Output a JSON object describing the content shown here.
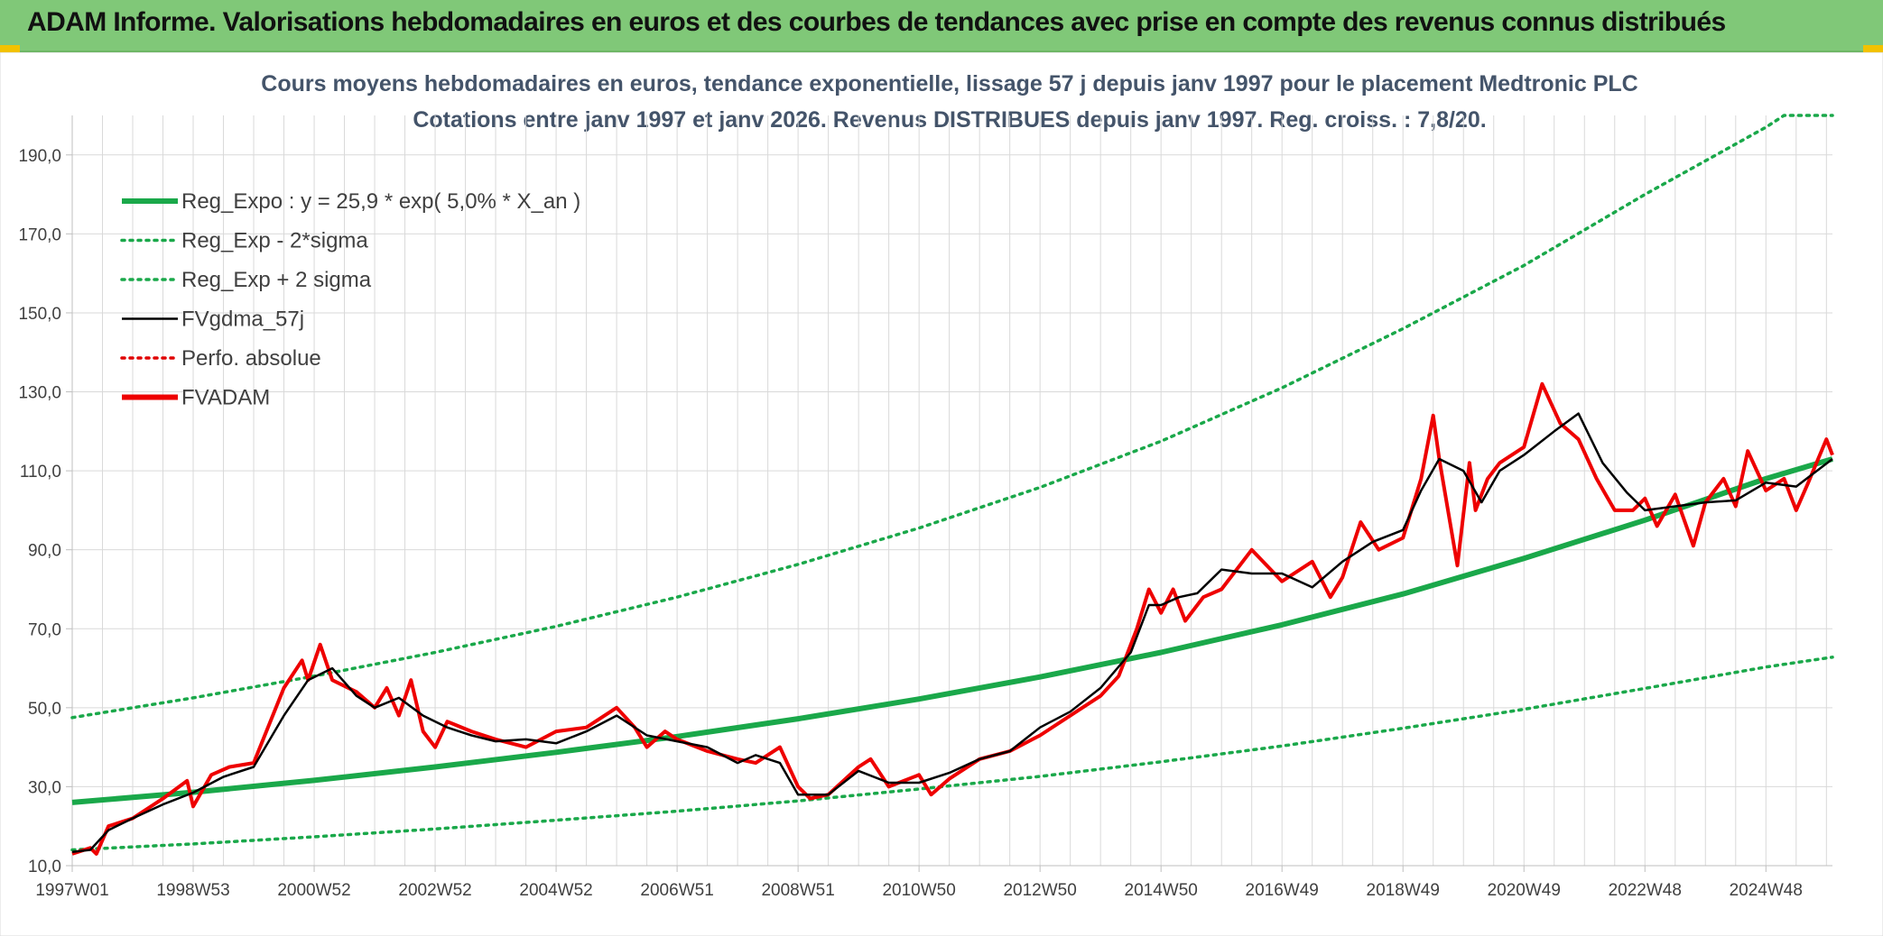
{
  "header": {
    "title": "ADAM Informe. Valorisations hebdomadaires en euros et des courbes de tendances avec prise en compte des revenus connus distribués",
    "background": "#80c878"
  },
  "chart_data": {
    "type": "line",
    "title": "Cours moyens hebdomadaires en euros, tendance exponentielle, lissage 57 j depuis janv 1997 pour le placement Medtronic PLC",
    "subtitle": "Cotations entre janv 1997 et janv 2026. Revenus DISTRIBUES depuis janv 1997. Reg. croiss. : 7,8/20.",
    "xlabel": "",
    "ylabel": "",
    "x_range": [
      1997.0,
      2026.1
    ],
    "ylim": [
      10,
      200
    ],
    "grid": true,
    "legend_position": "top-left",
    "x_tick_labels": [
      "1997W01",
      "1998W53",
      "2000W52",
      "2002W52",
      "2004W52",
      "2006W51",
      "2008W51",
      "2010W50",
      "2012W50",
      "2014W50",
      "2016W49",
      "2018W49",
      "2020W49",
      "2022W48",
      "2024W48"
    ],
    "x_tick_values": [
      1997.0,
      1999.0,
      2001.0,
      2003.0,
      2005.0,
      2007.0,
      2009.0,
      2011.0,
      2013.0,
      2015.0,
      2017.0,
      2019.0,
      2021.0,
      2023.0,
      2025.0
    ],
    "y_ticks": [
      10,
      30,
      50,
      70,
      90,
      110,
      130,
      150,
      170,
      190
    ],
    "y_tick_labels": [
      "10,0",
      "30,0",
      "50,0",
      "70,0",
      "90,0",
      "110,0",
      "130,0",
      "150,0",
      "170,0",
      "190,0"
    ],
    "series": [
      {
        "name": "Reg_Expo : y = 25,9 * exp( 5,0% *  X_an )",
        "color": "#1aa84a",
        "style": "thick",
        "x": [
          1997.0,
          1999.0,
          2001.0,
          2003.0,
          2005.0,
          2007.0,
          2009.0,
          2011.0,
          2013.0,
          2015.0,
          2017.0,
          2019.0,
          2021.0,
          2023.0,
          2025.0,
          2026.1
        ],
        "values": [
          26.0,
          28.6,
          31.6,
          35.0,
          38.7,
          42.7,
          47.2,
          52.2,
          57.8,
          64.0,
          71.0,
          78.8,
          87.8,
          97.5,
          108.0,
          113.0
        ]
      },
      {
        "name": "Reg_Exp - 2*sigma",
        "color": "#1aa84a",
        "style": "dotted",
        "x": [
          1997.0,
          1999.0,
          2001.0,
          2003.0,
          2005.0,
          2007.0,
          2009.0,
          2011.0,
          2013.0,
          2015.0,
          2017.0,
          2019.0,
          2021.0,
          2023.0,
          2025.0,
          2026.1
        ],
        "values": [
          14.0,
          15.5,
          17.3,
          19.3,
          21.5,
          23.8,
          26.4,
          29.4,
          32.6,
          36.3,
          40.3,
          44.8,
          49.6,
          54.9,
          60.3,
          62.8
        ]
      },
      {
        "name": "Reg_Exp + 2 sigma",
        "color": "#1aa84a",
        "style": "dotted",
        "x": [
          1997.0,
          1999.0,
          2001.0,
          2003.0,
          2005.0,
          2007.0,
          2009.0,
          2011.0,
          2013.0,
          2015.0,
          2017.0,
          2019.0,
          2021.0,
          2023.0,
          2025.0,
          2025.3,
          2026.1
        ],
        "values": [
          47.5,
          52.5,
          58.0,
          64.0,
          70.6,
          78.0,
          86.3,
          95.5,
          105.8,
          117.5,
          131.0,
          146.0,
          162.0,
          180.0,
          197.0,
          200.0,
          200.0
        ]
      },
      {
        "name": "FVgdma_57j",
        "color": "#000000",
        "style": "thin",
        "x": [
          1997.0,
          1997.3,
          1997.6,
          1998.0,
          1998.5,
          1999.0,
          1999.5,
          2000.0,
          2000.5,
          2000.9,
          2001.3,
          2001.7,
          2002.0,
          2002.4,
          2002.8,
          2003.2,
          2003.6,
          2004.0,
          2004.5,
          2005.0,
          2005.5,
          2006.0,
          2006.5,
          2007.0,
          2007.5,
          2008.0,
          2008.3,
          2008.7,
          2009.0,
          2009.5,
          2010.0,
          2010.5,
          2011.0,
          2011.5,
          2012.0,
          2012.5,
          2013.0,
          2013.5,
          2014.0,
          2014.5,
          2014.8,
          2015.0,
          2015.3,
          2015.6,
          2016.0,
          2016.5,
          2017.0,
          2017.5,
          2018.0,
          2018.5,
          2019.0,
          2019.3,
          2019.6,
          2020.0,
          2020.3,
          2020.6,
          2021.0,
          2021.5,
          2021.9,
          2022.3,
          2022.7,
          2023.0,
          2023.5,
          2024.0,
          2024.5,
          2025.0,
          2025.5,
          2026.1
        ],
        "values": [
          13.5,
          14.0,
          19.0,
          22.0,
          25.5,
          28.5,
          32.5,
          35.0,
          48.0,
          57.0,
          60.0,
          53.0,
          50.0,
          52.5,
          48.0,
          45.0,
          43.0,
          41.5,
          42.0,
          41.0,
          44.0,
          48.0,
          43.0,
          41.5,
          40.0,
          36.0,
          38.0,
          36.0,
          28.0,
          28.0,
          34.0,
          31.0,
          31.0,
          33.5,
          37.0,
          39.0,
          45.0,
          49.0,
          55.0,
          64.0,
          76.0,
          76.0,
          78.0,
          79.0,
          85.0,
          84.0,
          84.0,
          80.5,
          87.0,
          92.0,
          95.0,
          105.0,
          113.0,
          110.0,
          102.0,
          110.0,
          114.0,
          120.0,
          124.5,
          112.0,
          104.5,
          100.0,
          101.0,
          102.0,
          102.5,
          107.0,
          106.0,
          113.0
        ]
      },
      {
        "name": "Perfo. absolue",
        "color": "#e00000",
        "style": "dotted",
        "x": [],
        "values": []
      },
      {
        "name": "FVADAM",
        "color": "#ee0000",
        "style": "thick",
        "x": [
          1997.0,
          1997.3,
          1997.4,
          1997.6,
          1998.0,
          1998.5,
          1998.9,
          1999.0,
          1999.3,
          1999.6,
          2000.0,
          2000.5,
          2000.8,
          2000.9,
          2001.1,
          2001.3,
          2001.7,
          2002.0,
          2002.2,
          2002.4,
          2002.6,
          2002.8,
          2003.0,
          2003.2,
          2003.6,
          2004.0,
          2004.5,
          2005.0,
          2005.5,
          2006.0,
          2006.3,
          2006.5,
          2006.8,
          2007.0,
          2007.5,
          2008.0,
          2008.3,
          2008.7,
          2009.0,
          2009.2,
          2009.5,
          2010.0,
          2010.2,
          2010.5,
          2011.0,
          2011.2,
          2011.5,
          2012.0,
          2012.5,
          2013.0,
          2013.5,
          2014.0,
          2014.3,
          2014.6,
          2014.8,
          2015.0,
          2015.2,
          2015.4,
          2015.7,
          2016.0,
          2016.5,
          2017.0,
          2017.5,
          2017.8,
          2018.0,
          2018.3,
          2018.6,
          2019.0,
          2019.3,
          2019.5,
          2019.6,
          2019.9,
          2020.1,
          2020.2,
          2020.4,
          2020.6,
          2021.0,
          2021.3,
          2021.6,
          2021.9,
          2022.2,
          2022.5,
          2022.8,
          2023.0,
          2023.2,
          2023.5,
          2023.8,
          2024.0,
          2024.3,
          2024.5,
          2024.7,
          2025.0,
          2025.3,
          2025.5,
          2025.7,
          2026.0,
          2026.1
        ],
        "values": [
          13.0,
          14.5,
          13.0,
          20.0,
          22.0,
          27.0,
          31.5,
          25.0,
          33.0,
          35.0,
          36.0,
          55.0,
          62.0,
          57.0,
          66.0,
          57.0,
          54.0,
          50.0,
          55.0,
          48.0,
          57.0,
          44.0,
          40.0,
          46.5,
          44.0,
          42.0,
          40.0,
          44.0,
          45.0,
          50.0,
          45.0,
          40.0,
          44.0,
          42.0,
          39.0,
          37.0,
          36.0,
          40.0,
          30.0,
          27.0,
          28.0,
          35.0,
          37.0,
          30.0,
          33.0,
          28.0,
          32.0,
          37.0,
          39.0,
          43.0,
          48.0,
          53.0,
          58.0,
          70.0,
          80.0,
          74.0,
          80.0,
          72.0,
          78.0,
          80.0,
          90.0,
          82.0,
          87.0,
          78.0,
          83.0,
          97.0,
          90.0,
          93.0,
          108.0,
          124.0,
          113.0,
          86.0,
          112.0,
          100.0,
          108.0,
          112.0,
          116.0,
          132.0,
          122.0,
          118.0,
          108.0,
          100.0,
          100.0,
          103.0,
          96.0,
          104.0,
          91.0,
          102.0,
          108.0,
          101.0,
          115.0,
          105.0,
          108.0,
          100.0,
          107.0,
          118.0,
          114.0
        ]
      }
    ],
    "legend_entries": [
      {
        "label": "Reg_Expo : y = 25,9 * exp( 5,0% *  X_an )"
      },
      {
        "label": "Reg_Exp - 2*sigma"
      },
      {
        "label": "Reg_Exp + 2 sigma"
      },
      {
        "label": "FVgdma_57j"
      },
      {
        "label": "Perfo. absolue"
      },
      {
        "label": "FVADAM"
      }
    ]
  }
}
